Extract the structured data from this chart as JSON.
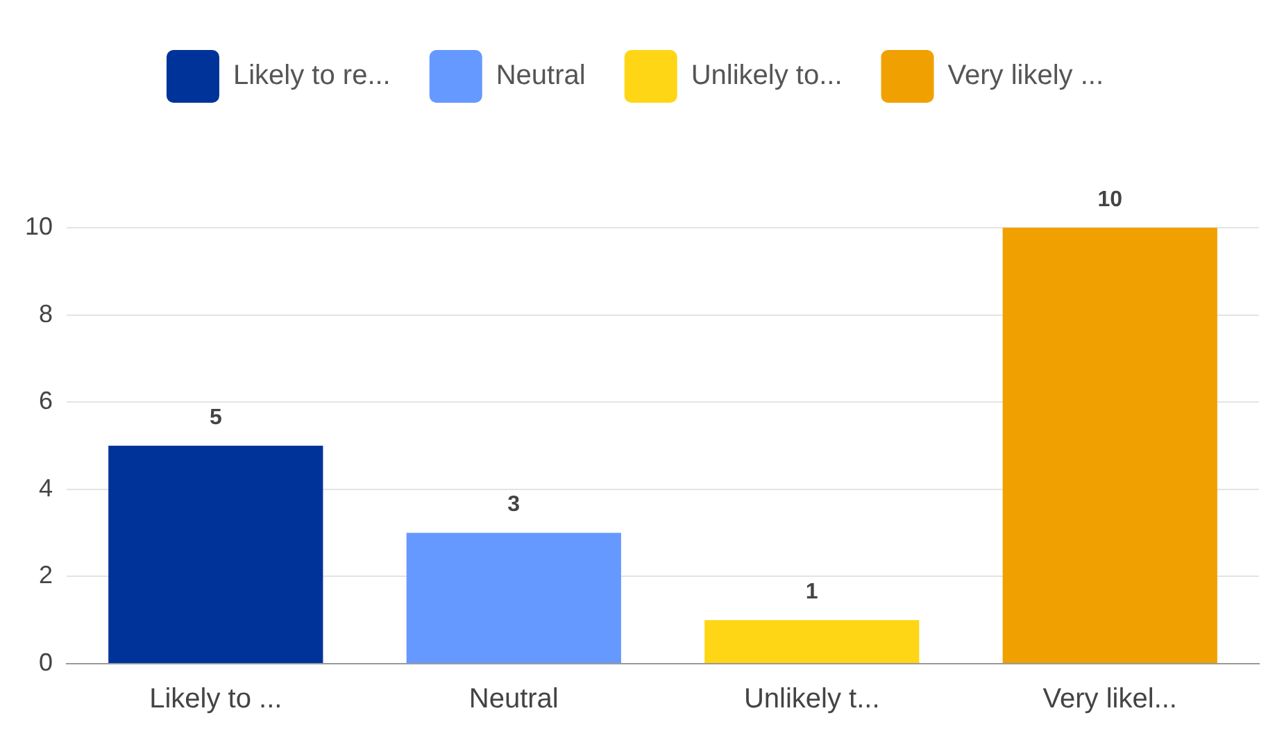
{
  "chart_data": {
    "type": "bar",
    "categories": [
      "Likely to ...",
      "Neutral",
      "Unlikely t...",
      "Very likel..."
    ],
    "series": [
      {
        "name": "Likely to re...",
        "color": "#003399",
        "values": [
          5,
          null,
          null,
          null
        ]
      },
      {
        "name": "Neutral",
        "color": "#6699ff",
        "values": [
          null,
          3,
          null,
          null
        ]
      },
      {
        "name": "Unlikely to...",
        "color": "#ffd615",
        "values": [
          null,
          null,
          1,
          null
        ]
      },
      {
        "name": "Very likely ...",
        "color": "#f0a000",
        "values": [
          null,
          null,
          null,
          10
        ]
      }
    ],
    "ylim": [
      0,
      10
    ],
    "yticks": [
      0,
      2,
      4,
      6,
      8,
      10
    ],
    "grid": "y",
    "legend": "top",
    "data_labels": true
  }
}
